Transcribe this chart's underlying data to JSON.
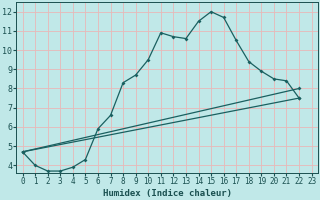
{
  "xlabel": "Humidex (Indice chaleur)",
  "bg_color": "#c0e8e8",
  "grid_color": "#e8b8b8",
  "line_color": "#1a6060",
  "xlim": [
    -0.5,
    23.5
  ],
  "ylim": [
    3.6,
    12.5
  ],
  "xticks": [
    0,
    1,
    2,
    3,
    4,
    5,
    6,
    7,
    8,
    9,
    10,
    11,
    12,
    13,
    14,
    15,
    16,
    17,
    18,
    19,
    20,
    21,
    22,
    23
  ],
  "yticks": [
    4,
    5,
    6,
    7,
    8,
    9,
    10,
    11,
    12
  ],
  "line1_x": [
    0,
    1,
    2,
    3,
    4,
    5,
    6,
    7,
    8,
    9,
    10,
    11,
    12,
    13,
    14,
    15,
    16,
    17,
    18,
    19,
    20,
    21,
    22
  ],
  "line1_y": [
    4.7,
    4.0,
    3.7,
    3.7,
    3.9,
    4.3,
    5.9,
    6.6,
    8.3,
    8.7,
    9.5,
    10.9,
    10.7,
    10.6,
    11.5,
    12.0,
    11.7,
    10.5,
    9.4,
    8.9,
    8.5,
    8.4,
    7.5
  ],
  "line2_x": [
    0,
    22
  ],
  "line2_y": [
    4.7,
    7.5
  ],
  "line3_x": [
    0,
    22
  ],
  "line3_y": [
    4.7,
    8.0
  ],
  "marker_style": "D",
  "marker_size": 2.0,
  "line_width": 0.9,
  "tick_fontsize": 5.5,
  "xlabel_fontsize": 6.5,
  "tick_color": "#1a5050",
  "spine_color": "#1a5050"
}
